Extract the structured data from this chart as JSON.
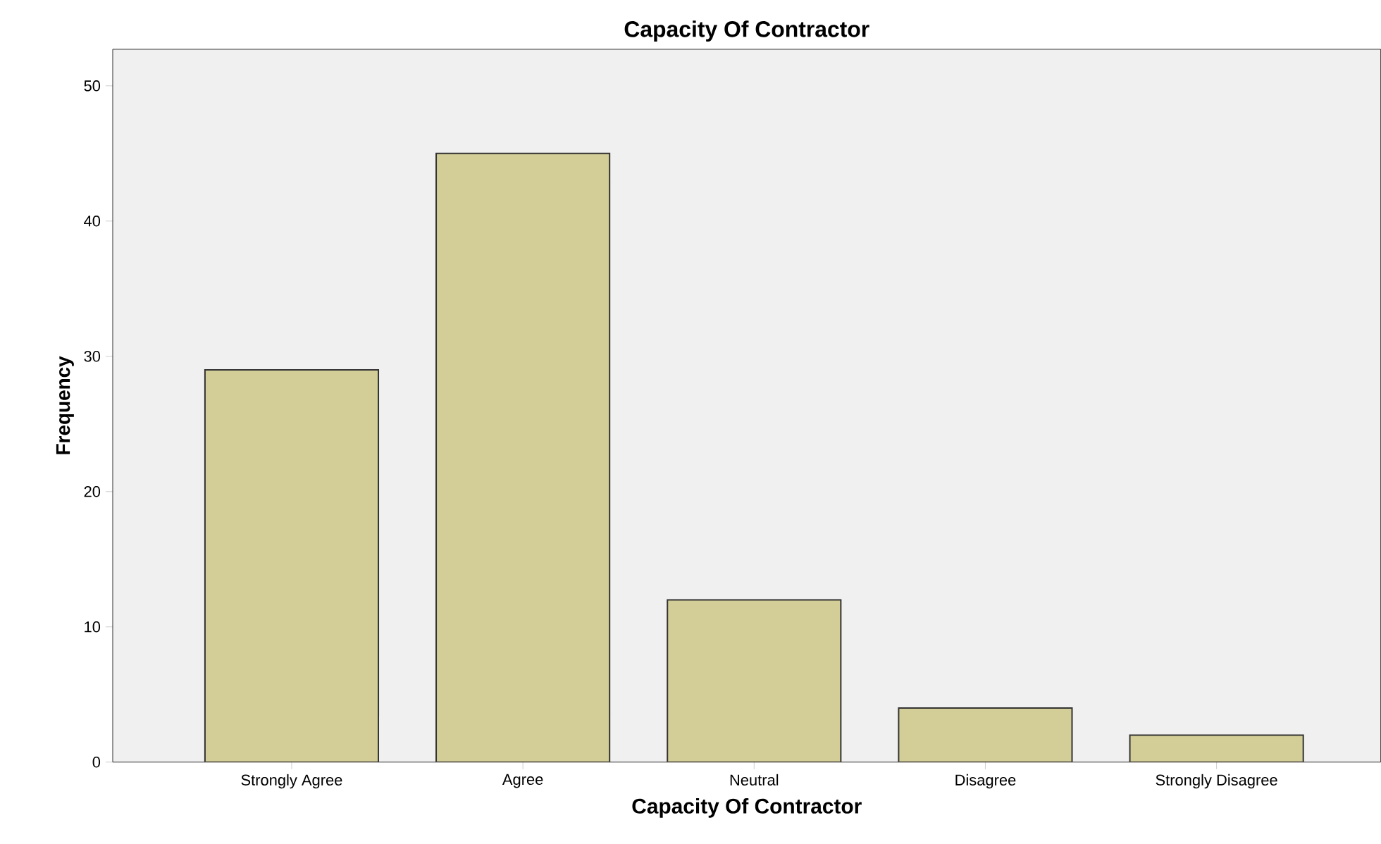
{
  "chart_data": {
    "type": "bar",
    "title": "Capacity Of Contractor",
    "xlabel": "Capacity Of Contractor",
    "ylabel": "Frequency",
    "categories": [
      "Strongly Agree",
      "Agree",
      "Neutral",
      "Disagree",
      "Strongly Disagree"
    ],
    "values": [
      29,
      45,
      12,
      4,
      2
    ],
    "color": "#d3ce97",
    "ylim": [
      0,
      52.7
    ],
    "yticks": [
      0,
      10,
      20,
      30,
      40,
      50
    ]
  }
}
